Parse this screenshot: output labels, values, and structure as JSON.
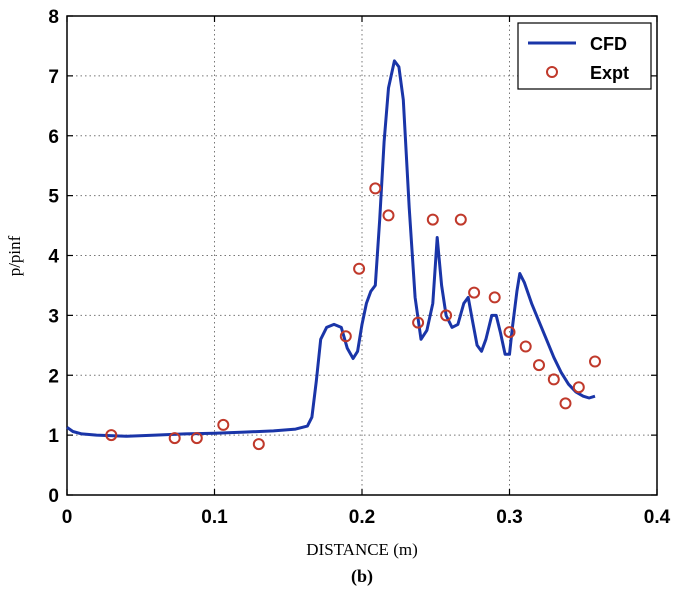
{
  "chart_data": {
    "type": "line",
    "xlabel": "DISTANCE (m)",
    "ylabel": "p/pinf",
    "caption": "(b)",
    "xlim": [
      0,
      0.4
    ],
    "ylim": [
      0,
      8
    ],
    "x_ticks": [
      "0",
      "0.1",
      "0.2",
      "0.3",
      "0.4"
    ],
    "y_ticks": [
      "0",
      "1",
      "2",
      "3",
      "4",
      "5",
      "6",
      "7",
      "8"
    ],
    "grid": true,
    "legend_position": "top-right",
    "series": [
      {
        "name": "CFD",
        "style": "line",
        "color": "#1a35a8",
        "points": [
          [
            0.0,
            1.13
          ],
          [
            0.004,
            1.06
          ],
          [
            0.01,
            1.02
          ],
          [
            0.02,
            1.0
          ],
          [
            0.04,
            0.98
          ],
          [
            0.06,
            1.0
          ],
          [
            0.08,
            1.02
          ],
          [
            0.1,
            1.03
          ],
          [
            0.12,
            1.05
          ],
          [
            0.14,
            1.07
          ],
          [
            0.155,
            1.1
          ],
          [
            0.163,
            1.15
          ],
          [
            0.166,
            1.3
          ],
          [
            0.169,
            1.9
          ],
          [
            0.172,
            2.6
          ],
          [
            0.176,
            2.8
          ],
          [
            0.181,
            2.85
          ],
          [
            0.186,
            2.8
          ],
          [
            0.19,
            2.45
          ],
          [
            0.194,
            2.28
          ],
          [
            0.197,
            2.4
          ],
          [
            0.2,
            2.85
          ],
          [
            0.203,
            3.2
          ],
          [
            0.206,
            3.4
          ],
          [
            0.209,
            3.5
          ],
          [
            0.212,
            4.6
          ],
          [
            0.215,
            5.9
          ],
          [
            0.218,
            6.8
          ],
          [
            0.222,
            7.25
          ],
          [
            0.225,
            7.15
          ],
          [
            0.228,
            6.6
          ],
          [
            0.232,
            4.8
          ],
          [
            0.236,
            3.3
          ],
          [
            0.24,
            2.6
          ],
          [
            0.244,
            2.75
          ],
          [
            0.248,
            3.2
          ],
          [
            0.251,
            4.3
          ],
          [
            0.254,
            3.5
          ],
          [
            0.257,
            3.0
          ],
          [
            0.261,
            2.8
          ],
          [
            0.265,
            2.85
          ],
          [
            0.269,
            3.2
          ],
          [
            0.272,
            3.3
          ],
          [
            0.275,
            2.9
          ],
          [
            0.278,
            2.5
          ],
          [
            0.281,
            2.4
          ],
          [
            0.284,
            2.6
          ],
          [
            0.288,
            3.0
          ],
          [
            0.291,
            3.0
          ],
          [
            0.294,
            2.7
          ],
          [
            0.297,
            2.35
          ],
          [
            0.3,
            2.35
          ],
          [
            0.302,
            2.8
          ],
          [
            0.305,
            3.4
          ],
          [
            0.307,
            3.7
          ],
          [
            0.31,
            3.55
          ],
          [
            0.315,
            3.2
          ],
          [
            0.32,
            2.9
          ],
          [
            0.325,
            2.6
          ],
          [
            0.33,
            2.3
          ],
          [
            0.335,
            2.05
          ],
          [
            0.34,
            1.85
          ],
          [
            0.345,
            1.72
          ],
          [
            0.35,
            1.65
          ],
          [
            0.354,
            1.62
          ],
          [
            0.358,
            1.65
          ]
        ]
      },
      {
        "name": "Expt",
        "style": "marker",
        "color": "#c0392b",
        "points": [
          [
            0.03,
            1.0
          ],
          [
            0.073,
            0.95
          ],
          [
            0.088,
            0.95
          ],
          [
            0.106,
            1.17
          ],
          [
            0.13,
            0.85
          ],
          [
            0.189,
            2.65
          ],
          [
            0.198,
            3.78
          ],
          [
            0.209,
            5.12
          ],
          [
            0.218,
            4.67
          ],
          [
            0.238,
            2.88
          ],
          [
            0.248,
            4.6
          ],
          [
            0.257,
            3.0
          ],
          [
            0.267,
            4.6
          ],
          [
            0.276,
            3.38
          ],
          [
            0.29,
            3.3
          ],
          [
            0.3,
            2.72
          ],
          [
            0.311,
            2.48
          ],
          [
            0.32,
            2.17
          ],
          [
            0.33,
            1.93
          ],
          [
            0.338,
            1.53
          ],
          [
            0.347,
            1.8
          ],
          [
            0.358,
            2.23
          ]
        ]
      }
    ]
  }
}
